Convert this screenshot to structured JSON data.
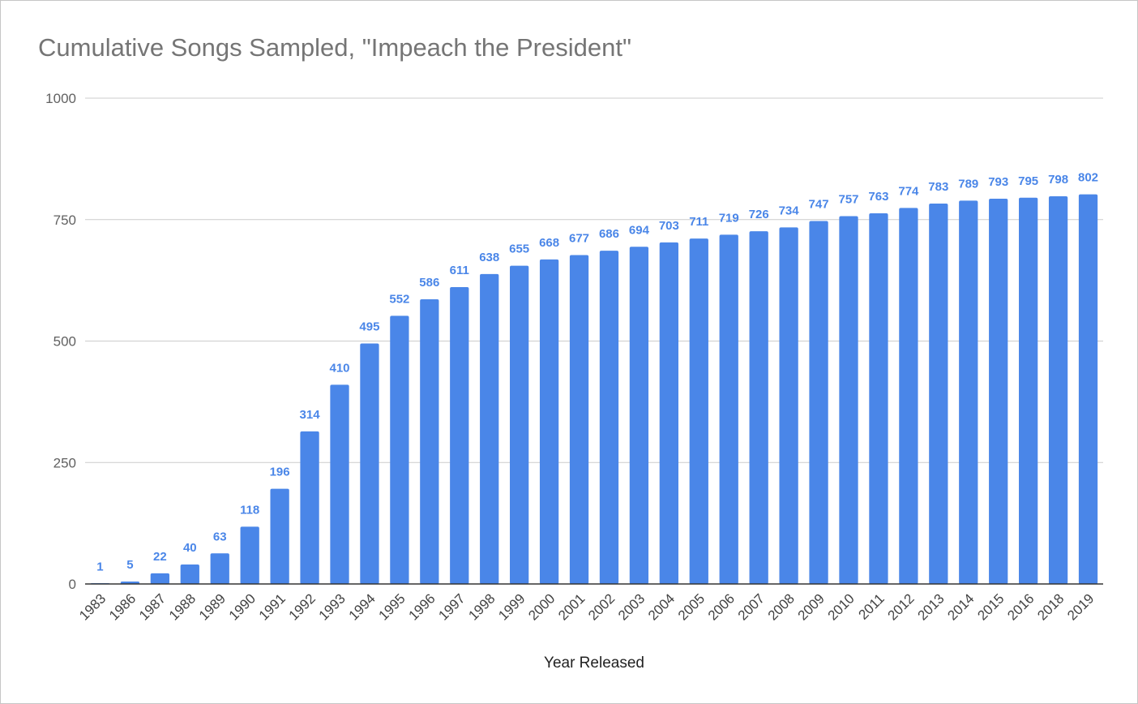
{
  "chart_data": {
    "type": "bar",
    "title": "Cumulative Songs Sampled, \"Impeach the President\"",
    "xlabel": "Year Released",
    "ylabel": "",
    "ylim": [
      0,
      1000
    ],
    "yticks": [
      0,
      250,
      500,
      750,
      1000
    ],
    "grid": true,
    "data_labels": true,
    "bar_color": "#4a86e8",
    "categories": [
      "1983",
      "1986",
      "1987",
      "1988",
      "1989",
      "1990",
      "1991",
      "1992",
      "1993",
      "1994",
      "1995",
      "1996",
      "1997",
      "1998",
      "1999",
      "2000",
      "2001",
      "2002",
      "2003",
      "2004",
      "2005",
      "2006",
      "2007",
      "2008",
      "2009",
      "2010",
      "2011",
      "2012",
      "2013",
      "2014",
      "2015",
      "2016",
      "2018",
      "2019"
    ],
    "values": [
      1,
      5,
      22,
      40,
      63,
      118,
      196,
      314,
      410,
      495,
      552,
      586,
      611,
      638,
      655,
      668,
      677,
      686,
      694,
      703,
      711,
      719,
      726,
      734,
      747,
      757,
      763,
      774,
      783,
      789,
      793,
      795,
      798,
      802
    ]
  }
}
